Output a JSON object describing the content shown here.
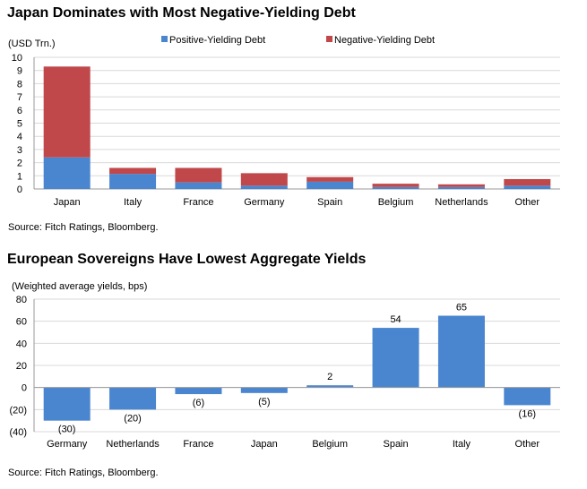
{
  "chart_data": [
    {
      "type": "bar",
      "stacked": true,
      "title": "Japan Dominates with Most Negative-Yielding Debt",
      "ylabel": "(USD Trn.)",
      "ylim": [
        0,
        10
      ],
      "yticks": [
        "0",
        "1",
        "2",
        "3",
        "4",
        "5",
        "6",
        "7",
        "8",
        "9",
        "10"
      ],
      "grid": true,
      "legend": "top",
      "categories": [
        "Japan",
        "Italy",
        "France",
        "Germany",
        "Spain",
        "Belgium",
        "Netherlands",
        "Other"
      ],
      "series": [
        {
          "name": "Positive-Yielding Debt",
          "color": "#4a86d0",
          "values": [
            2.4,
            1.15,
            0.5,
            0.25,
            0.55,
            0.15,
            0.15,
            0.25
          ]
        },
        {
          "name": "Negative-Yielding Debt",
          "color": "#c0484a",
          "values": [
            6.9,
            0.45,
            1.1,
            0.95,
            0.35,
            0.25,
            0.2,
            0.5
          ]
        }
      ],
      "source": "Source: Fitch Ratings, Bloomberg."
    },
    {
      "type": "bar",
      "title": "European Sovereigns Have Lowest Aggregate Yields",
      "ylabel": "(Weighted average yields, bps)",
      "ylim": [
        -40,
        80
      ],
      "yticks": [
        "(40)",
        "(20)",
        "0",
        "20",
        "40",
        "60",
        "80"
      ],
      "grid": true,
      "color": "#4a86d0",
      "categories": [
        "Germany",
        "Netherlands",
        "France",
        "Japan",
        "Belgium",
        "Spain",
        "Italy",
        "Other"
      ],
      "values": [
        -30,
        -20,
        -6,
        -5,
        2,
        54,
        65,
        -16
      ],
      "value_labels": [
        "(30)",
        "(20)",
        "(6)",
        "(5)",
        "2",
        "54",
        "65",
        "(16)"
      ],
      "source": "Source: Fitch Ratings, Bloomberg."
    }
  ]
}
